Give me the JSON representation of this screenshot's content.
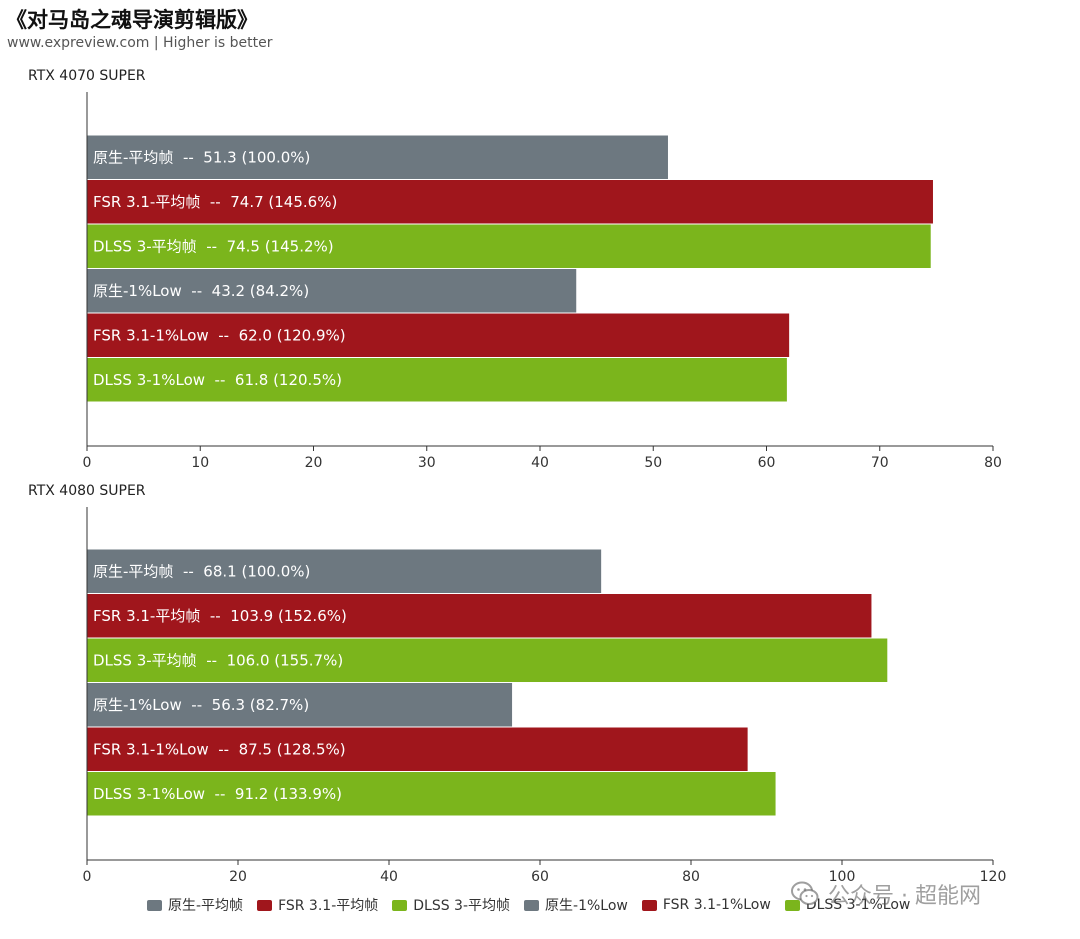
{
  "header": {
    "title": "《对马岛之魂导演剪辑版》",
    "subtitle": "www.expreview.com | Higher is better"
  },
  "colors": {
    "native": "#6d7880",
    "fsr": "#a0161c",
    "dlss": "#7bb51c",
    "axis": "#333333",
    "bar_text": "#ffffff"
  },
  "legend": [
    {
      "label": "原生-平均帧",
      "color": "#6d7880"
    },
    {
      "label": "FSR 3.1-平均帧",
      "color": "#a0161c"
    },
    {
      "label": "DLSS 3-平均帧",
      "color": "#7bb51c"
    },
    {
      "label": "原生-1%Low",
      "color": "#6d7880"
    },
    {
      "label": "FSR 3.1-1%Low",
      "color": "#a0161c"
    },
    {
      "label": "DLSS 3-1%Low",
      "color": "#7bb51c"
    }
  ],
  "watermark": {
    "text": "公众号 · 超能网",
    "icon": "wechat-icon"
  },
  "chart_data": [
    {
      "type": "bar",
      "orientation": "horizontal",
      "title": "RTX 4070 SUPER",
      "xlim": [
        0,
        80
      ],
      "ticks": [
        0,
        10,
        20,
        30,
        40,
        50,
        60,
        70,
        80
      ],
      "bars": [
        {
          "label": "原生-平均帧  --  51.3 (100.0%)",
          "value": 51.3,
          "color": "#6d7880"
        },
        {
          "label": "FSR 3.1-平均帧  --  74.7 (145.6%)",
          "value": 74.7,
          "color": "#a0161c"
        },
        {
          "label": "DLSS 3-平均帧  --  74.5 (145.2%)",
          "value": 74.5,
          "color": "#7bb51c"
        },
        {
          "label": "原生-1%Low  --  43.2 (84.2%)",
          "value": 43.2,
          "color": "#6d7880"
        },
        {
          "label": "FSR 3.1-1%Low  --  62.0 (120.9%)",
          "value": 62.0,
          "color": "#a0161c"
        },
        {
          "label": "DLSS 3-1%Low  --  61.8 (120.5%)",
          "value": 61.8,
          "color": "#7bb51c"
        }
      ]
    },
    {
      "type": "bar",
      "orientation": "horizontal",
      "title": "RTX 4080 SUPER",
      "xlim": [
        0,
        120
      ],
      "ticks": [
        0,
        20,
        40,
        60,
        80,
        100,
        120
      ],
      "bars": [
        {
          "label": "原生-平均帧  --  68.1 (100.0%)",
          "value": 68.1,
          "color": "#6d7880"
        },
        {
          "label": "FSR 3.1-平均帧  --  103.9 (152.6%)",
          "value": 103.9,
          "color": "#a0161c"
        },
        {
          "label": "DLSS 3-平均帧  --  106.0 (155.7%)",
          "value": 106.0,
          "color": "#7bb51c"
        },
        {
          "label": "原生-1%Low  --  56.3 (82.7%)",
          "value": 56.3,
          "color": "#6d7880"
        },
        {
          "label": "FSR 3.1-1%Low  --  87.5 (128.5%)",
          "value": 87.5,
          "color": "#a0161c"
        },
        {
          "label": "DLSS 3-1%Low  --  91.2 (133.9%)",
          "value": 91.2,
          "color": "#7bb51c"
        }
      ]
    }
  ]
}
